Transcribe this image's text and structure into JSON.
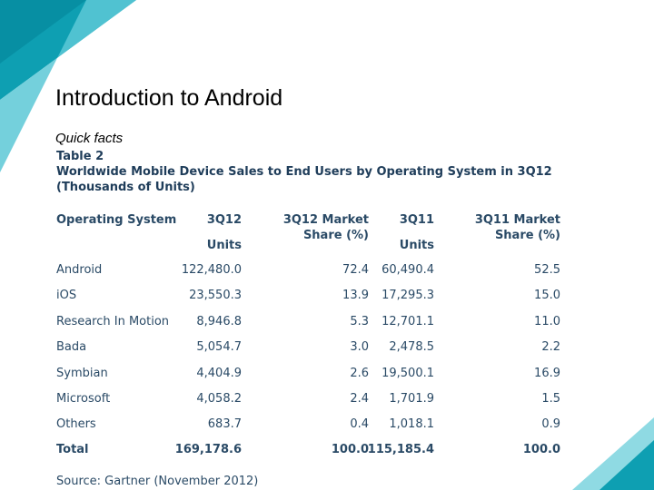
{
  "slide": {
    "title": "Introduction to Android",
    "subtitle": "Quick facts"
  },
  "table": {
    "label": "Table 2",
    "caption_line1": "Worldwide Mobile Device Sales to End Users by Operating System in 3Q12",
    "caption_line2": "(Thousands of Units)",
    "headers": {
      "os": "Operating System",
      "q12_line1": "3Q12",
      "q12_line2": "Units",
      "q12share_line1": "3Q12 Market",
      "q12share_line2": "Share (%)",
      "q11_line1": "3Q11",
      "q11_line2": "Units",
      "q11share_line1": "3Q11 Market",
      "q11share_line2": "Share (%)"
    },
    "rows": [
      {
        "os": "Android",
        "q12": "122,480.0",
        "q12share": "72.4",
        "q11": "60,490.4",
        "q11share": "52.5"
      },
      {
        "os": "iOS",
        "q12": "23,550.3",
        "q12share": "13.9",
        "q11": "17,295.3",
        "q11share": "15.0"
      },
      {
        "os": "Research In Motion",
        "q12": "8,946.8",
        "q12share": "5.3",
        "q11": "12,701.1",
        "q11share": "11.0"
      },
      {
        "os": "Bada",
        "q12": "5,054.7",
        "q12share": "3.0",
        "q11": "2,478.5",
        "q11share": "2.2"
      },
      {
        "os": "Symbian",
        "q12": "4,404.9",
        "q12share": "2.6",
        "q11": "19,500.1",
        "q11share": "16.9"
      },
      {
        "os": "Microsoft",
        "q12": "4,058.2",
        "q12share": "2.4",
        "q11": "1,701.9",
        "q11share": "1.5"
      },
      {
        "os": "Others",
        "q12": "683.7",
        "q12share": "0.4",
        "q11": "1,018.1",
        "q11share": "0.9"
      }
    ],
    "total": {
      "os": "Total",
      "q12": "169,178.6",
      "q12share": "100.0",
      "q11": "115,185.4",
      "q11share": "100.0"
    },
    "source": "Source: Gartner (November 2012)"
  },
  "colors": {
    "teal_dark": "#0e9fb2",
    "teal_light": "#6fd0dc",
    "table_text": "#2a4a66"
  }
}
